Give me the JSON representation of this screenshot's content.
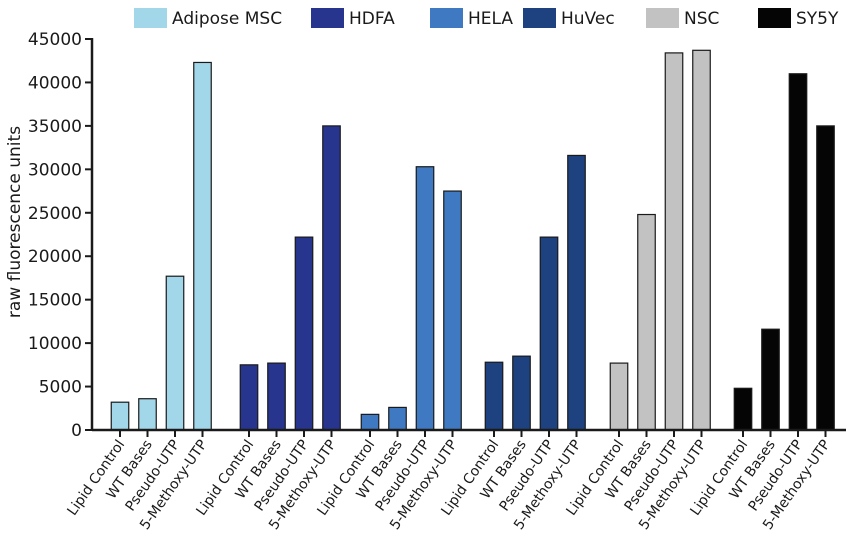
{
  "chart_data": {
    "type": "bar",
    "title": "",
    "xlabel": "",
    "ylabel": "raw fluorescence units",
    "ylim": [
      0,
      45000
    ],
    "yticks": [
      0,
      5000,
      10000,
      15000,
      20000,
      25000,
      30000,
      35000,
      40000,
      45000
    ],
    "categories": [
      "Lipid Control",
      "WT Bases",
      "Pseudo-UTP",
      "5-Methoxy-UTP"
    ],
    "legend_position": "top",
    "grid": false,
    "series": [
      {
        "name": "Adipose MSC",
        "color": "#a2d7ea",
        "values": [
          3200,
          3600,
          17700,
          42300
        ]
      },
      {
        "name": "HDFA",
        "color": "#27358f",
        "values": [
          7500,
          7700,
          22200,
          35000
        ]
      },
      {
        "name": "HELA",
        "color": "#3f79c2",
        "values": [
          1800,
          2600,
          30300,
          27500
        ]
      },
      {
        "name": "HuVec",
        "color": "#1d427f",
        "values": [
          7800,
          8500,
          22200,
          31600
        ]
      },
      {
        "name": "NSC",
        "color": "#c2c2c2",
        "values": [
          7700,
          24800,
          43400,
          43700
        ]
      },
      {
        "name": "SY5Y",
        "color": "#050505",
        "values": [
          4800,
          11600,
          41000,
          35000
        ]
      }
    ]
  }
}
